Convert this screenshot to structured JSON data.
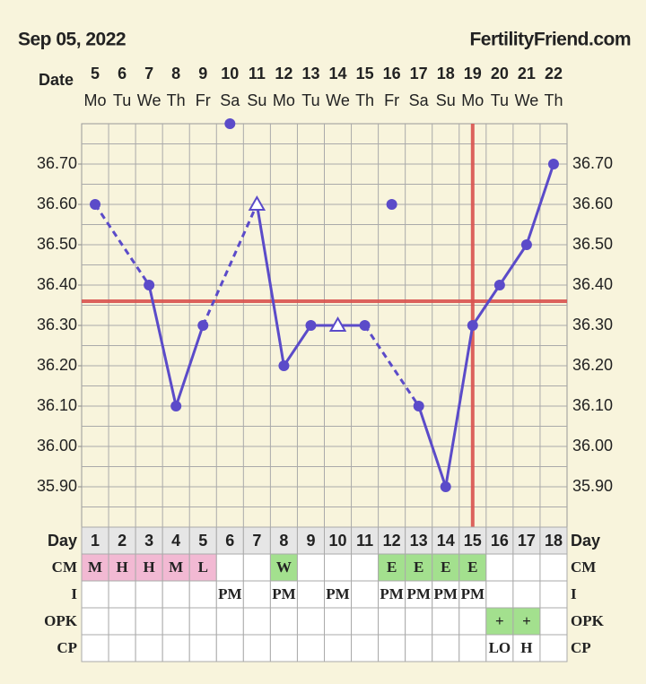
{
  "header": {
    "date": "Sep 05, 2022",
    "site": "FertilityFriend.com"
  },
  "chart_data": {
    "type": "line",
    "date_label": "Date",
    "dates": [
      "5",
      "6",
      "7",
      "8",
      "9",
      "10",
      "11",
      "12",
      "13",
      "14",
      "15",
      "16",
      "17",
      "18",
      "19",
      "20",
      "21",
      "22"
    ],
    "weekdays": [
      "Mo",
      "Tu",
      "We",
      "Th",
      "Fr",
      "Sa",
      "Su",
      "Mo",
      "Tu",
      "We",
      "Th",
      "Fr",
      "Sa",
      "Su",
      "Mo",
      "Tu",
      "We",
      "Th"
    ],
    "series": [
      {
        "color": "#5b4bc9",
        "values": [
          36.6,
          null,
          36.4,
          36.1,
          36.3,
          null,
          36.6,
          36.2,
          36.3,
          36.3,
          36.3,
          null,
          36.1,
          35.9,
          36.3,
          36.4,
          36.5,
          36.7
        ],
        "markers": [
          "circle",
          null,
          "circle",
          "circle",
          "circle",
          null,
          "triangle",
          "circle",
          "circle",
          "triangle",
          "circle",
          null,
          "circle",
          "circle",
          "circle",
          "circle",
          "circle",
          "circle"
        ]
      },
      {
        "color": "#5b4bc9",
        "values": [
          null,
          null,
          null,
          null,
          null,
          36.8,
          null,
          null,
          null,
          null,
          null,
          36.6,
          null,
          null,
          null,
          null,
          null,
          null
        ]
      }
    ],
    "ylim": [
      35.8,
      36.8
    ],
    "yticks": [
      {
        "value": 35.9,
        "label": "35.90"
      },
      {
        "value": 36.0,
        "label": "36.00"
      },
      {
        "value": 36.1,
        "label": "36.10"
      },
      {
        "value": 36.2,
        "label": "36.20"
      },
      {
        "value": 36.3,
        "label": "36.30"
      },
      {
        "value": 36.4,
        "label": "36.40"
      },
      {
        "value": 36.5,
        "label": "36.50"
      },
      {
        "value": 36.6,
        "label": "36.60"
      },
      {
        "value": 36.7,
        "label": "36.70"
      }
    ],
    "grid": true,
    "coverline": 36.36,
    "ovulation_day": "15",
    "marker_line_color": "#d9534f",
    "table": {
      "day_label": "Day",
      "cycle_days": [
        "1",
        "2",
        "3",
        "4",
        "5",
        "6",
        "7",
        "8",
        "9",
        "10",
        "11",
        "12",
        "13",
        "14",
        "15",
        "16",
        "17",
        "18"
      ],
      "rows": [
        {
          "label": "CM",
          "cells": [
            "M",
            "H",
            "H",
            "M",
            "L",
            null,
            null,
            "W",
            null,
            null,
            null,
            "E",
            "E",
            "E",
            "E",
            null,
            null,
            null
          ],
          "colors": [
            "#f2b9d3",
            "#f2b9d3",
            "#f2b9d3",
            "#f2b9d3",
            "#f2b9d3",
            null,
            null,
            "#a3e08e",
            null,
            null,
            null,
            "#a3e08e",
            "#a3e08e",
            "#a3e08e",
            "#a3e08e",
            null,
            null,
            null
          ]
        },
        {
          "label": "I",
          "cells": [
            null,
            null,
            null,
            null,
            null,
            "PM",
            null,
            "PM",
            null,
            "PM",
            null,
            "PM",
            "PM",
            "PM",
            "PM",
            null,
            null,
            null
          ]
        },
        {
          "label": "OPK",
          "cells": [
            null,
            null,
            null,
            null,
            null,
            null,
            null,
            null,
            null,
            null,
            null,
            null,
            null,
            null,
            null,
            "+",
            "+",
            null
          ],
          "colors": [
            null,
            null,
            null,
            null,
            null,
            null,
            null,
            null,
            null,
            null,
            null,
            null,
            null,
            null,
            null,
            "#a3e08e",
            "#a3e08e",
            null
          ]
        },
        {
          "label": "CP",
          "cells": [
            null,
            null,
            null,
            null,
            null,
            null,
            null,
            null,
            null,
            null,
            null,
            null,
            null,
            null,
            null,
            "LO",
            "H",
            null
          ]
        }
      ]
    }
  }
}
